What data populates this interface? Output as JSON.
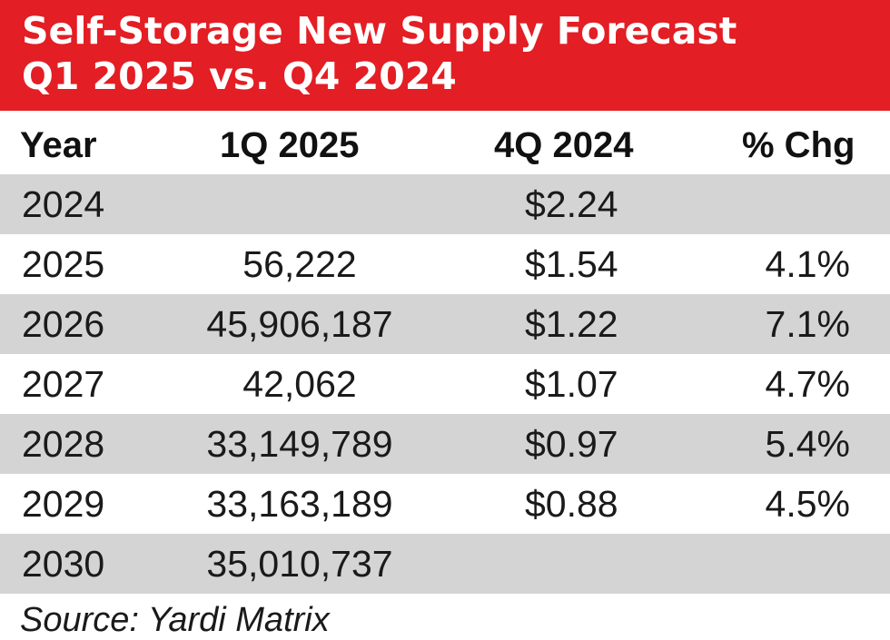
{
  "chart_data": {
    "type": "table",
    "title": "Self-Storage New Supply Forecast",
    "subtitle": "Q1 2025 vs. Q4 2024",
    "columns": [
      "Year",
      "1Q 2025",
      "4Q 2024",
      "% Chg"
    ],
    "rows": [
      {
        "year": "2024",
        "q1_2025": "",
        "q4_2024": "$2.24",
        "pct_chg": ""
      },
      {
        "year": "2025",
        "q1_2025": "56,222",
        "q4_2024": "$1.54",
        "pct_chg": "4.1%"
      },
      {
        "year": "2026",
        "q1_2025": "45,906,187",
        "q4_2024": "$1.22",
        "pct_chg": "7.1%"
      },
      {
        "year": "2027",
        "q1_2025": "42,062",
        "q4_2024": "$1.07",
        "pct_chg": "4.7%"
      },
      {
        "year": "2028",
        "q1_2025": "33,149,789",
        "q4_2024": "$0.97",
        "pct_chg": "5.4%"
      },
      {
        "year": "2029",
        "q1_2025": "33,163,189",
        "q4_2024": "$0.88",
        "pct_chg": "4.5%"
      },
      {
        "year": "2030",
        "q1_2025": "35,010,737",
        "q4_2024": "",
        "pct_chg": ""
      }
    ],
    "source": "Source: Yardi Matrix"
  },
  "colors": {
    "banner": "#e31e24",
    "title_text": "#ffffff",
    "row_shade": "#d4d4d4",
    "row_plain": "#ffffff",
    "text": "#1a1a1a"
  }
}
